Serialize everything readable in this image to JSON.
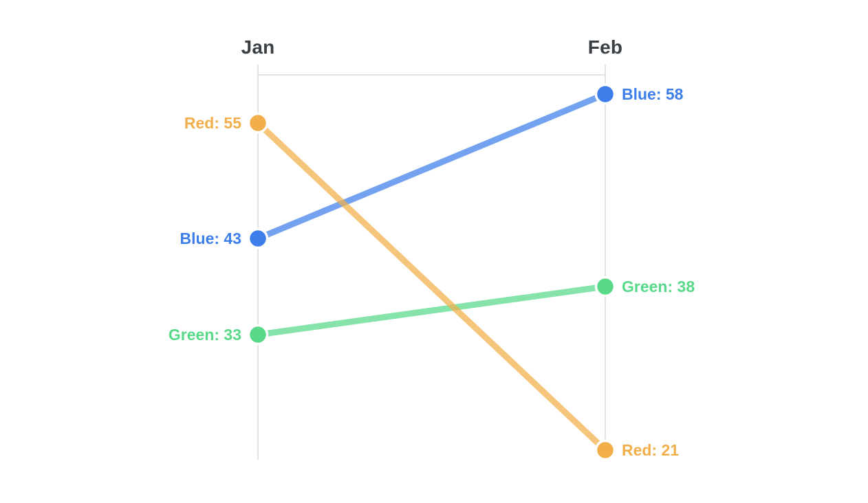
{
  "page": {
    "background": "#FFFFFF"
  },
  "chart_data": {
    "type": "line",
    "subtype": "slopegraph",
    "title": "",
    "categories": [
      "Jan",
      "Feb"
    ],
    "series": [
      {
        "name": "Blue",
        "color": "#3D7EEA",
        "values": [
          43,
          58
        ],
        "labels": [
          "Blue: 43",
          "Blue: 58"
        ]
      },
      {
        "name": "Green",
        "color": "#58D98A",
        "values": [
          33,
          38
        ],
        "labels": [
          "Green: 33",
          "Green: 38"
        ]
      },
      {
        "name": "Red",
        "color": "#F2AE4A",
        "values": [
          55,
          21
        ],
        "labels": [
          "Red: 55",
          "Red: 21"
        ]
      }
    ],
    "ylim": [
      20,
      60
    ],
    "grid": false,
    "legend": "none",
    "axis_color": "#E2E2E2",
    "header_color": "#3A3F44",
    "line_opacity": 0.72
  }
}
